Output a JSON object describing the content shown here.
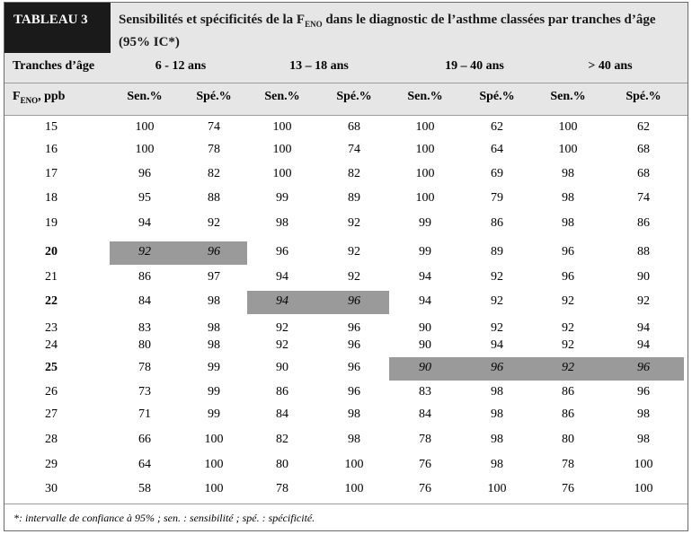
{
  "tag": "TABLEAU 3",
  "title": {
    "part1": "Sensibilités et spécificités de la F",
    "sub": "ENO",
    "part2": " dans le diagnostic de l’asthme classées par tranches d’âge (95% IC*)"
  },
  "age_label": "Tranches d’âge",
  "age_groups": [
    "6 - 12 ans",
    "13 – 18 ans",
    "19 – 40 ans",
    "> 40 ans"
  ],
  "feno_label": {
    "main": "F",
    "sub": "ENO",
    "rest": ", ppb"
  },
  "col_headers": [
    "Sen.%",
    "Spé.%",
    "Sen.%",
    "Spé.%",
    "Sen.%",
    "Spé.%",
    "Sen.%",
    "Spé.%"
  ],
  "rows": [
    {
      "feno": "15",
      "bold": false,
      "vals": [
        "100",
        "74",
        "100",
        "68",
        "100",
        "62",
        "100",
        "62"
      ]
    },
    {
      "feno": "16",
      "bold": false,
      "vals": [
        "100",
        "78",
        "100",
        "74",
        "100",
        "64",
        "100",
        "68"
      ]
    },
    {
      "feno": "17",
      "bold": false,
      "vals": [
        "96",
        "82",
        "100",
        "82",
        "100",
        "69",
        "98",
        "68"
      ]
    },
    {
      "feno": "18",
      "bold": false,
      "vals": [
        "95",
        "88",
        "99",
        "89",
        "100",
        "79",
        "98",
        "74"
      ]
    },
    {
      "feno": "19",
      "bold": false,
      "vals": [
        "94",
        "92",
        "98",
        "92",
        "99",
        "86",
        "98",
        "86"
      ]
    },
    {
      "feno": "20",
      "bold": true,
      "vals": [
        "92",
        "96",
        "96",
        "92",
        "99",
        "89",
        "96",
        "88"
      ]
    },
    {
      "feno": "21",
      "bold": false,
      "vals": [
        "86",
        "97",
        "94",
        "92",
        "94",
        "92",
        "96",
        "90"
      ]
    },
    {
      "feno": "22",
      "bold": true,
      "vals": [
        "84",
        "98",
        "94",
        "96",
        "94",
        "92",
        "92",
        "92"
      ]
    },
    {
      "feno": "23",
      "bold": false,
      "vals": [
        "83",
        "98",
        "92",
        "96",
        "90",
        "92",
        "92",
        "94"
      ]
    },
    {
      "feno": "24",
      "bold": false,
      "vals": [
        "80",
        "98",
        "92",
        "96",
        "90",
        "94",
        "92",
        "94"
      ]
    },
    {
      "feno": "25",
      "bold": true,
      "vals": [
        "78",
        "99",
        "90",
        "96",
        "90",
        "96",
        "92",
        "96"
      ]
    },
    {
      "feno": "26",
      "bold": false,
      "vals": [
        "73",
        "99",
        "86",
        "96",
        "83",
        "98",
        "86",
        "96"
      ]
    },
    {
      "feno": "27",
      "bold": false,
      "vals": [
        "71",
        "99",
        "84",
        "98",
        "84",
        "98",
        "86",
        "98"
      ]
    },
    {
      "feno": "28",
      "bold": false,
      "vals": [
        "66",
        "100",
        "82",
        "98",
        "78",
        "98",
        "80",
        "98"
      ]
    },
    {
      "feno": "29",
      "bold": false,
      "vals": [
        "64",
        "100",
        "80",
        "100",
        "76",
        "98",
        "78",
        "100"
      ]
    },
    {
      "feno": "30",
      "bold": false,
      "vals": [
        "58",
        "100",
        "78",
        "100",
        "76",
        "100",
        "76",
        "100"
      ]
    }
  ],
  "highlights": [
    {
      "row": 5,
      "cols": [
        0,
        1
      ]
    },
    {
      "row": 7,
      "cols": [
        2,
        3
      ]
    },
    {
      "row": 10,
      "cols": [
        4,
        5,
        6,
        7
      ]
    }
  ],
  "footnote": "*: intervalle de confiance à 95% ; sen. : sensibilité ; spé. : spécificité."
}
